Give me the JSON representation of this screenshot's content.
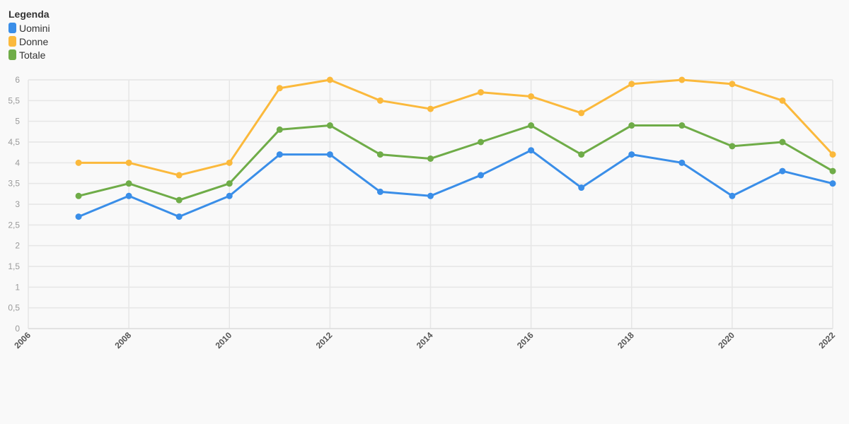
{
  "legend": {
    "title": "Legenda",
    "items": [
      {
        "label": "Uomini",
        "color": "#3a8ee8"
      },
      {
        "label": "Donne",
        "color": "#fbb93c"
      },
      {
        "label": "Totale",
        "color": "#6fac48"
      }
    ]
  },
  "chart_data": {
    "type": "line",
    "title": "",
    "xlabel": "",
    "ylabel": "",
    "xlim": [
      2006,
      2022
    ],
    "ylim": [
      0,
      6
    ],
    "xticks": [
      2006,
      2008,
      2010,
      2012,
      2014,
      2016,
      2018,
      2020,
      2022
    ],
    "yticks": [
      "0",
      "0,5",
      "1",
      "1,5",
      "2",
      "2,5",
      "3",
      "3,5",
      "4",
      "4,5",
      "5",
      "5,5",
      "6"
    ],
    "grid": true,
    "legend_position": "top-left",
    "x": [
      2007,
      2008,
      2009,
      2010,
      2011,
      2012,
      2013,
      2014,
      2015,
      2016,
      2017,
      2018,
      2019,
      2020,
      2021,
      2022
    ],
    "series": [
      {
        "name": "Uomini",
        "color": "#3a8ee8",
        "values": [
          2.7,
          3.2,
          2.7,
          3.2,
          4.2,
          4.2,
          3.3,
          3.2,
          3.7,
          4.3,
          3.4,
          4.2,
          4.0,
          3.2,
          3.8,
          3.5
        ]
      },
      {
        "name": "Donne",
        "color": "#fbb93c",
        "values": [
          4.0,
          4.0,
          3.7,
          4.0,
          5.8,
          6.0,
          5.5,
          5.3,
          5.7,
          5.6,
          5.2,
          5.9,
          6.0,
          5.9,
          5.5,
          4.2
        ]
      },
      {
        "name": "Totale",
        "color": "#6fac48",
        "values": [
          3.2,
          3.5,
          3.1,
          3.5,
          4.8,
          4.9,
          4.2,
          4.1,
          4.5,
          4.9,
          4.2,
          4.9,
          4.9,
          4.4,
          4.5,
          3.8
        ]
      }
    ]
  }
}
